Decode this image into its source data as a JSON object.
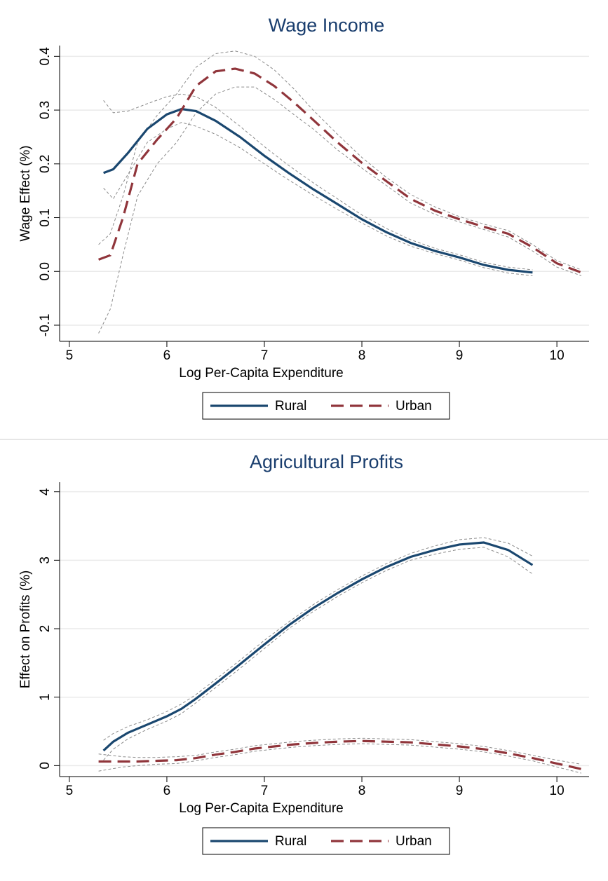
{
  "chart_data": [
    {
      "type": "line",
      "title": "Wage Income",
      "xlabel": "Log Per-Capita Expenditure",
      "ylabel": "Wage Effect (%)",
      "xlim": [
        4.9,
        10.33
      ],
      "xticks": [
        5,
        6,
        7,
        8,
        9,
        10
      ],
      "ylim": [
        -0.13,
        0.42
      ],
      "yticks": [
        -0.1,
        {
          "value": 0,
          "label": "0.0"
        },
        0.1,
        0.2,
        0.3,
        0.4
      ],
      "grid": true,
      "ci_color": "#8c8c8c",
      "series": [
        {
          "name": "Rural",
          "color": "#1a476f",
          "dash": "solid",
          "x": [
            5.35,
            5.45,
            5.6,
            5.8,
            6.0,
            6.15,
            6.3,
            6.5,
            6.75,
            7.0,
            7.25,
            7.5,
            7.75,
            8.0,
            8.25,
            8.5,
            8.75,
            9.0,
            9.25,
            9.5,
            9.75
          ],
          "values": [
            0.183,
            0.19,
            0.22,
            0.265,
            0.292,
            0.302,
            0.298,
            0.28,
            0.25,
            0.215,
            0.183,
            0.153,
            0.125,
            0.097,
            0.073,
            0.053,
            0.038,
            0.026,
            0.012,
            0.003,
            -0.002
          ],
          "ci_upper": [
            0.318,
            0.295,
            0.298,
            0.312,
            0.325,
            0.33,
            0.325,
            0.305,
            0.27,
            0.232,
            0.197,
            0.165,
            0.135,
            0.105,
            0.08,
            0.059,
            0.043,
            0.031,
            0.017,
            0.008,
            0.003
          ],
          "ci_lower": [
            0.155,
            0.135,
            0.18,
            0.24,
            0.265,
            0.277,
            0.27,
            0.255,
            0.23,
            0.2,
            0.17,
            0.142,
            0.115,
            0.09,
            0.066,
            0.047,
            0.033,
            0.021,
            0.007,
            -0.003,
            -0.008
          ]
        },
        {
          "name": "Urban",
          "color": "#90353b",
          "dash": "dashed",
          "x": [
            5.3,
            5.42,
            5.55,
            5.7,
            5.9,
            6.1,
            6.3,
            6.5,
            6.7,
            6.9,
            7.1,
            7.3,
            7.5,
            7.75,
            8.0,
            8.25,
            8.5,
            8.75,
            9.0,
            9.25,
            9.5,
            9.75,
            10.0,
            10.25
          ],
          "values": [
            0.022,
            0.03,
            0.1,
            0.2,
            0.245,
            0.285,
            0.345,
            0.372,
            0.377,
            0.368,
            0.345,
            0.315,
            0.282,
            0.24,
            0.202,
            0.168,
            0.135,
            0.113,
            0.097,
            0.083,
            0.07,
            0.045,
            0.015,
            -0.002
          ],
          "ci_upper": [
            0.05,
            0.07,
            0.14,
            0.24,
            0.29,
            0.33,
            0.38,
            0.405,
            0.41,
            0.4,
            0.375,
            0.34,
            0.3,
            0.255,
            0.212,
            0.175,
            0.143,
            0.12,
            0.102,
            0.088,
            0.076,
            0.05,
            0.02,
            0.003
          ],
          "ci_lower": [
            -0.115,
            -0.07,
            0.03,
            0.14,
            0.2,
            0.24,
            0.295,
            0.33,
            0.343,
            0.343,
            0.32,
            0.292,
            0.265,
            0.226,
            0.192,
            0.16,
            0.127,
            0.106,
            0.092,
            0.078,
            0.064,
            0.038,
            0.008,
            -0.008
          ]
        }
      ]
    },
    {
      "type": "line",
      "title": "Agricultural Profits",
      "xlabel": "Log Per-Capita Expenditure",
      "ylabel": "Effect on Profits (%)",
      "xlim": [
        4.9,
        10.33
      ],
      "xticks": [
        5,
        6,
        7,
        8,
        9,
        10
      ],
      "ylim": [
        -0.16,
        4.14
      ],
      "yticks": [
        0,
        1,
        2,
        3,
        4
      ],
      "grid": true,
      "ci_color": "#8c8c8c",
      "series": [
        {
          "name": "Rural",
          "color": "#1a476f",
          "dash": "solid",
          "x": [
            5.35,
            5.45,
            5.6,
            5.8,
            6.0,
            6.15,
            6.3,
            6.5,
            6.75,
            7.0,
            7.25,
            7.5,
            7.75,
            8.0,
            8.25,
            8.5,
            8.75,
            9.0,
            9.25,
            9.5,
            9.75
          ],
          "values": [
            0.22,
            0.35,
            0.48,
            0.6,
            0.72,
            0.83,
            0.98,
            1.2,
            1.48,
            1.77,
            2.05,
            2.3,
            2.52,
            2.72,
            2.9,
            3.05,
            3.15,
            3.23,
            3.26,
            3.15,
            2.93
          ],
          "ci_upper": [
            0.37,
            0.47,
            0.57,
            0.67,
            0.79,
            0.9,
            1.04,
            1.26,
            1.54,
            1.83,
            2.1,
            2.35,
            2.57,
            2.77,
            2.95,
            3.1,
            3.21,
            3.3,
            3.33,
            3.25,
            3.06
          ],
          "ci_lower": [
            0.08,
            0.24,
            0.39,
            0.53,
            0.65,
            0.76,
            0.92,
            1.14,
            1.42,
            1.71,
            2.0,
            2.25,
            2.47,
            2.67,
            2.85,
            3.0,
            3.09,
            3.16,
            3.19,
            3.05,
            2.8
          ]
        },
        {
          "name": "Urban",
          "color": "#90353b",
          "dash": "dashed",
          "x": [
            5.3,
            5.42,
            5.55,
            5.7,
            5.9,
            6.1,
            6.3,
            6.5,
            6.7,
            6.9,
            7.1,
            7.3,
            7.5,
            7.75,
            8.0,
            8.25,
            8.5,
            8.75,
            9.0,
            9.25,
            9.5,
            9.75,
            10.0,
            10.25
          ],
          "values": [
            0.06,
            0.06,
            0.06,
            0.06,
            0.07,
            0.08,
            0.11,
            0.16,
            0.2,
            0.25,
            0.28,
            0.31,
            0.33,
            0.35,
            0.36,
            0.35,
            0.34,
            0.31,
            0.28,
            0.24,
            0.18,
            0.11,
            0.03,
            -0.05
          ],
          "ci_upper": [
            0.17,
            0.15,
            0.13,
            0.12,
            0.12,
            0.13,
            0.15,
            0.2,
            0.24,
            0.29,
            0.32,
            0.35,
            0.37,
            0.39,
            0.4,
            0.39,
            0.38,
            0.35,
            0.32,
            0.28,
            0.22,
            0.15,
            0.08,
            0.02
          ],
          "ci_lower": [
            -0.08,
            -0.05,
            -0.02,
            0.0,
            0.02,
            0.03,
            0.07,
            0.12,
            0.16,
            0.21,
            0.24,
            0.27,
            0.29,
            0.31,
            0.32,
            0.31,
            0.3,
            0.27,
            0.24,
            0.2,
            0.14,
            0.07,
            -0.02,
            -0.11
          ]
        }
      ]
    }
  ]
}
